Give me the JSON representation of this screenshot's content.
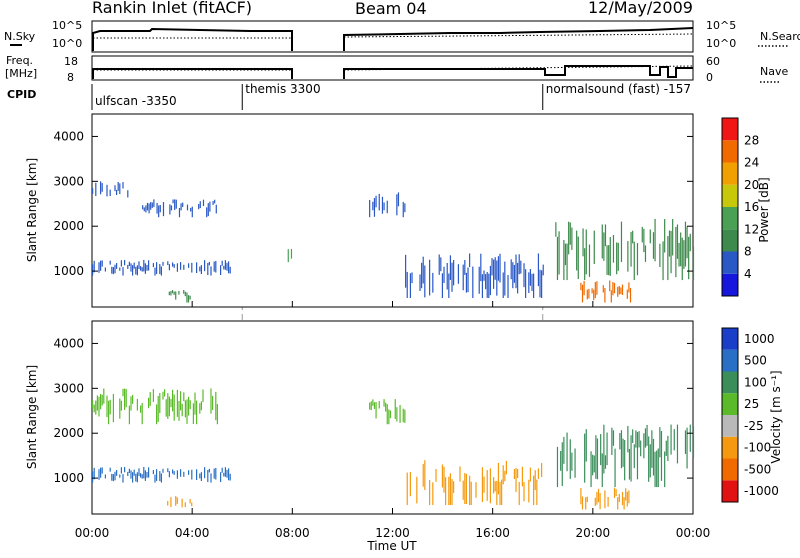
{
  "header": {
    "station": "Rankin Inlet (fitACF)",
    "beam": "Beam 04",
    "date": "12/May/2009"
  },
  "strip": {
    "nsky_label": "N.Sky",
    "nsky_ticks": [
      "10^5",
      "10^0"
    ],
    "nsearch_label": "N.Search",
    "nsearch_ticks": [
      "10^5",
      "10^0"
    ],
    "freq_label_1": "Freq.",
    "freq_label_2": "[MHz]",
    "freq_ticks": [
      "18",
      "8"
    ],
    "nave_label": "Nave",
    "nave_ticks": [
      "60",
      "0"
    ],
    "cpid_label": "CPID"
  },
  "modes": [
    {
      "text": "ulfscan -3350",
      "start_hour": 0
    },
    {
      "text": "themis 3300",
      "start_hour": 6
    },
    {
      "text": "normalsound (fast) -157",
      "start_hour": 18
    }
  ],
  "time_axis": {
    "label": "Time UT",
    "ticks": [
      "00:00",
      "04:00",
      "08:00",
      "12:00",
      "16:00",
      "20:00",
      "00:00"
    ]
  },
  "colors": {
    "power": [
      "#1616dc",
      "#2a58c4",
      "#3d8a4c",
      "#4aa055",
      "#c8c80a",
      "#f0a000",
      "#f06a00",
      "#f01616"
    ],
    "velocity": [
      "#e01212",
      "#f06a00",
      "#f59a10",
      "#b9b9b9",
      "#5aba2a",
      "#3b8e5a",
      "#2a6fc6",
      "#1a3ec8"
    ]
  },
  "chart_data": [
    {
      "type": "heatmap",
      "title": "Power",
      "xlabel": "Time UT",
      "ylabel": "Slant Range [km]",
      "xlim": [
        "00:00",
        "24:00"
      ],
      "ylim": [
        200,
        4500
      ],
      "y_ticks": [
        1000,
        2000,
        3000,
        4000
      ],
      "colorbar_label": "Power [dB]",
      "colorbar_ticks": [
        "4",
        "8",
        "12",
        "16",
        "20",
        "24",
        "28"
      ],
      "echo_regions": [
        {
          "t_start": "00:00",
          "t_end": "05:30",
          "range_km": [
            900,
            1250
          ],
          "value_db": 8
        },
        {
          "t_start": "02:00",
          "t_end": "05:00",
          "range_km": [
            2200,
            2600
          ],
          "value_db": 6
        },
        {
          "t_start": "00:00",
          "t_end": "01:30",
          "range_km": [
            2600,
            3000
          ],
          "value_db": 6
        },
        {
          "t_start": "03:00",
          "t_end": "04:00",
          "range_km": [
            300,
            600
          ],
          "value_db": 12
        },
        {
          "t_start": "07:45",
          "t_end": "08:00",
          "range_km": [
            1200,
            1600
          ],
          "value_db": 14
        },
        {
          "t_start": "11:00",
          "t_end": "12:30",
          "range_km": [
            2200,
            2800
          ],
          "value_db": 6
        },
        {
          "t_start": "12:30",
          "t_end": "18:00",
          "range_km": [
            400,
            1400
          ],
          "value_db": 9
        },
        {
          "t_start": "18:30",
          "t_end": "24:00",
          "range_km": [
            800,
            2200
          ],
          "value_db": 10
        },
        {
          "t_start": "19:30",
          "t_end": "21:30",
          "range_km": [
            300,
            800
          ],
          "value_db": 26
        }
      ]
    },
    {
      "type": "heatmap",
      "title": "Velocity",
      "xlabel": "Time UT",
      "ylabel": "Slant Range [km]",
      "xlim": [
        "00:00",
        "24:00"
      ],
      "ylim": [
        200,
        4500
      ],
      "y_ticks": [
        1000,
        2000,
        3000,
        4000
      ],
      "colorbar_label": "Velocity [m s⁻¹]",
      "colorbar_ticks": [
        "-1000",
        "-500",
        "-100",
        "-25",
        "25",
        "100",
        "500",
        "1000"
      ],
      "echo_regions": [
        {
          "t_start": "00:00",
          "t_end": "05:30",
          "range_km": [
            900,
            1250
          ],
          "value_ms": 150
        },
        {
          "t_start": "00:00",
          "t_end": "05:00",
          "range_km": [
            2200,
            3000
          ],
          "value_ms": 0
        },
        {
          "t_start": "03:00",
          "t_end": "04:00",
          "range_km": [
            300,
            600
          ],
          "value_ms": -150
        },
        {
          "t_start": "11:00",
          "t_end": "12:30",
          "range_km": [
            2200,
            2800
          ],
          "value_ms": 0
        },
        {
          "t_start": "12:30",
          "t_end": "18:00",
          "range_km": [
            400,
            1400
          ],
          "value_ms": -150
        },
        {
          "t_start": "18:30",
          "t_end": "24:00",
          "range_km": [
            800,
            2200
          ],
          "value_ms": 50
        },
        {
          "t_start": "19:30",
          "t_end": "21:30",
          "range_km": [
            300,
            800
          ],
          "value_ms": -150
        }
      ]
    }
  ]
}
